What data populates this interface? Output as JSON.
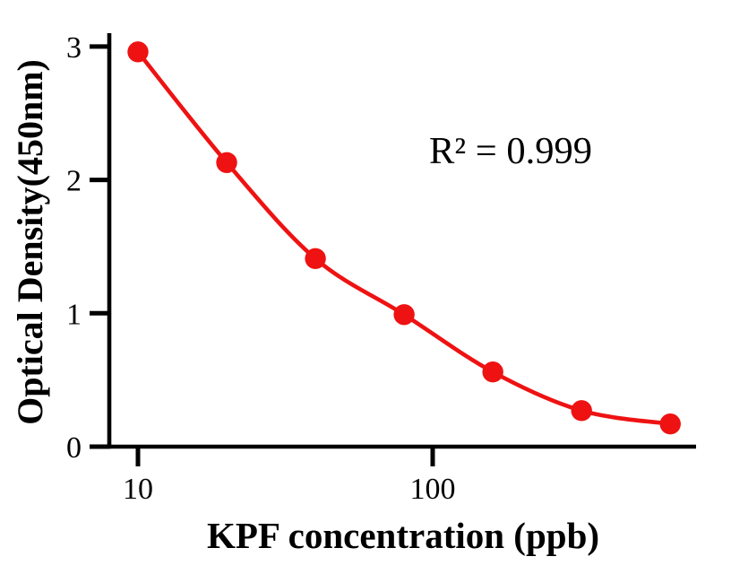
{
  "chart_data": {
    "type": "scatter",
    "x": [
      10,
      20,
      40,
      80,
      160,
      320,
      640
    ],
    "y": [
      2.96,
      2.13,
      1.41,
      0.99,
      0.56,
      0.27,
      0.17
    ],
    "title": "",
    "xlabel": "KPF concentration (ppb)",
    "ylabel": "Optical Density(450nm)",
    "xscale": "log",
    "xlim": [
      7.9,
      790
    ],
    "ylim": [
      0,
      3.1
    ],
    "x_ticks": [
      {
        "value": 10,
        "label": "10"
      },
      {
        "value": 100,
        "label": "100"
      }
    ],
    "y_ticks": [
      {
        "value": 0,
        "label": "0"
      },
      {
        "value": 1,
        "label": "1"
      },
      {
        "value": 2,
        "label": "2"
      },
      {
        "value": 3,
        "label": "3"
      }
    ],
    "annotation": "R² = 0.999",
    "grid": false,
    "legend": "none",
    "marker_color": "#ee1212",
    "curve_color": "#ee1212",
    "axis_color": "#000000"
  }
}
